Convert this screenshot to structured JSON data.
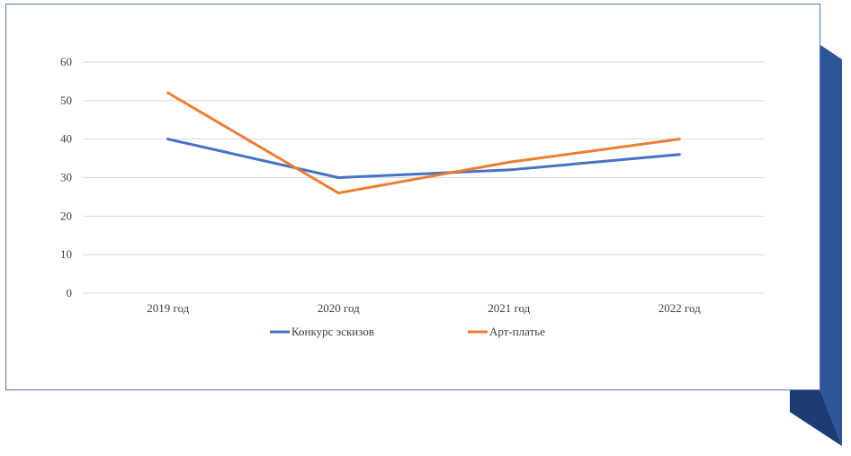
{
  "colors": {
    "frame_blue": "#2e5597",
    "border": "#4a78b0",
    "grid": "#d9d9d9"
  },
  "chart_data": {
    "type": "line",
    "categories": [
      "2019 год",
      "2020 год",
      "2021 год",
      "2022 год"
    ],
    "series": [
      {
        "name": "Конкурс эскизов",
        "values": [
          40,
          30,
          32,
          36
        ],
        "color": "#4472c4"
      },
      {
        "name": "Арт-платье",
        "values": [
          52,
          26,
          34,
          40
        ],
        "color": "#ed7d31"
      }
    ],
    "ylim": [
      0,
      60
    ],
    "yticks": [
      0,
      10,
      20,
      30,
      40,
      50,
      60
    ],
    "grid": true,
    "legend": "bottom",
    "title": "",
    "xlabel": "",
    "ylabel": ""
  }
}
